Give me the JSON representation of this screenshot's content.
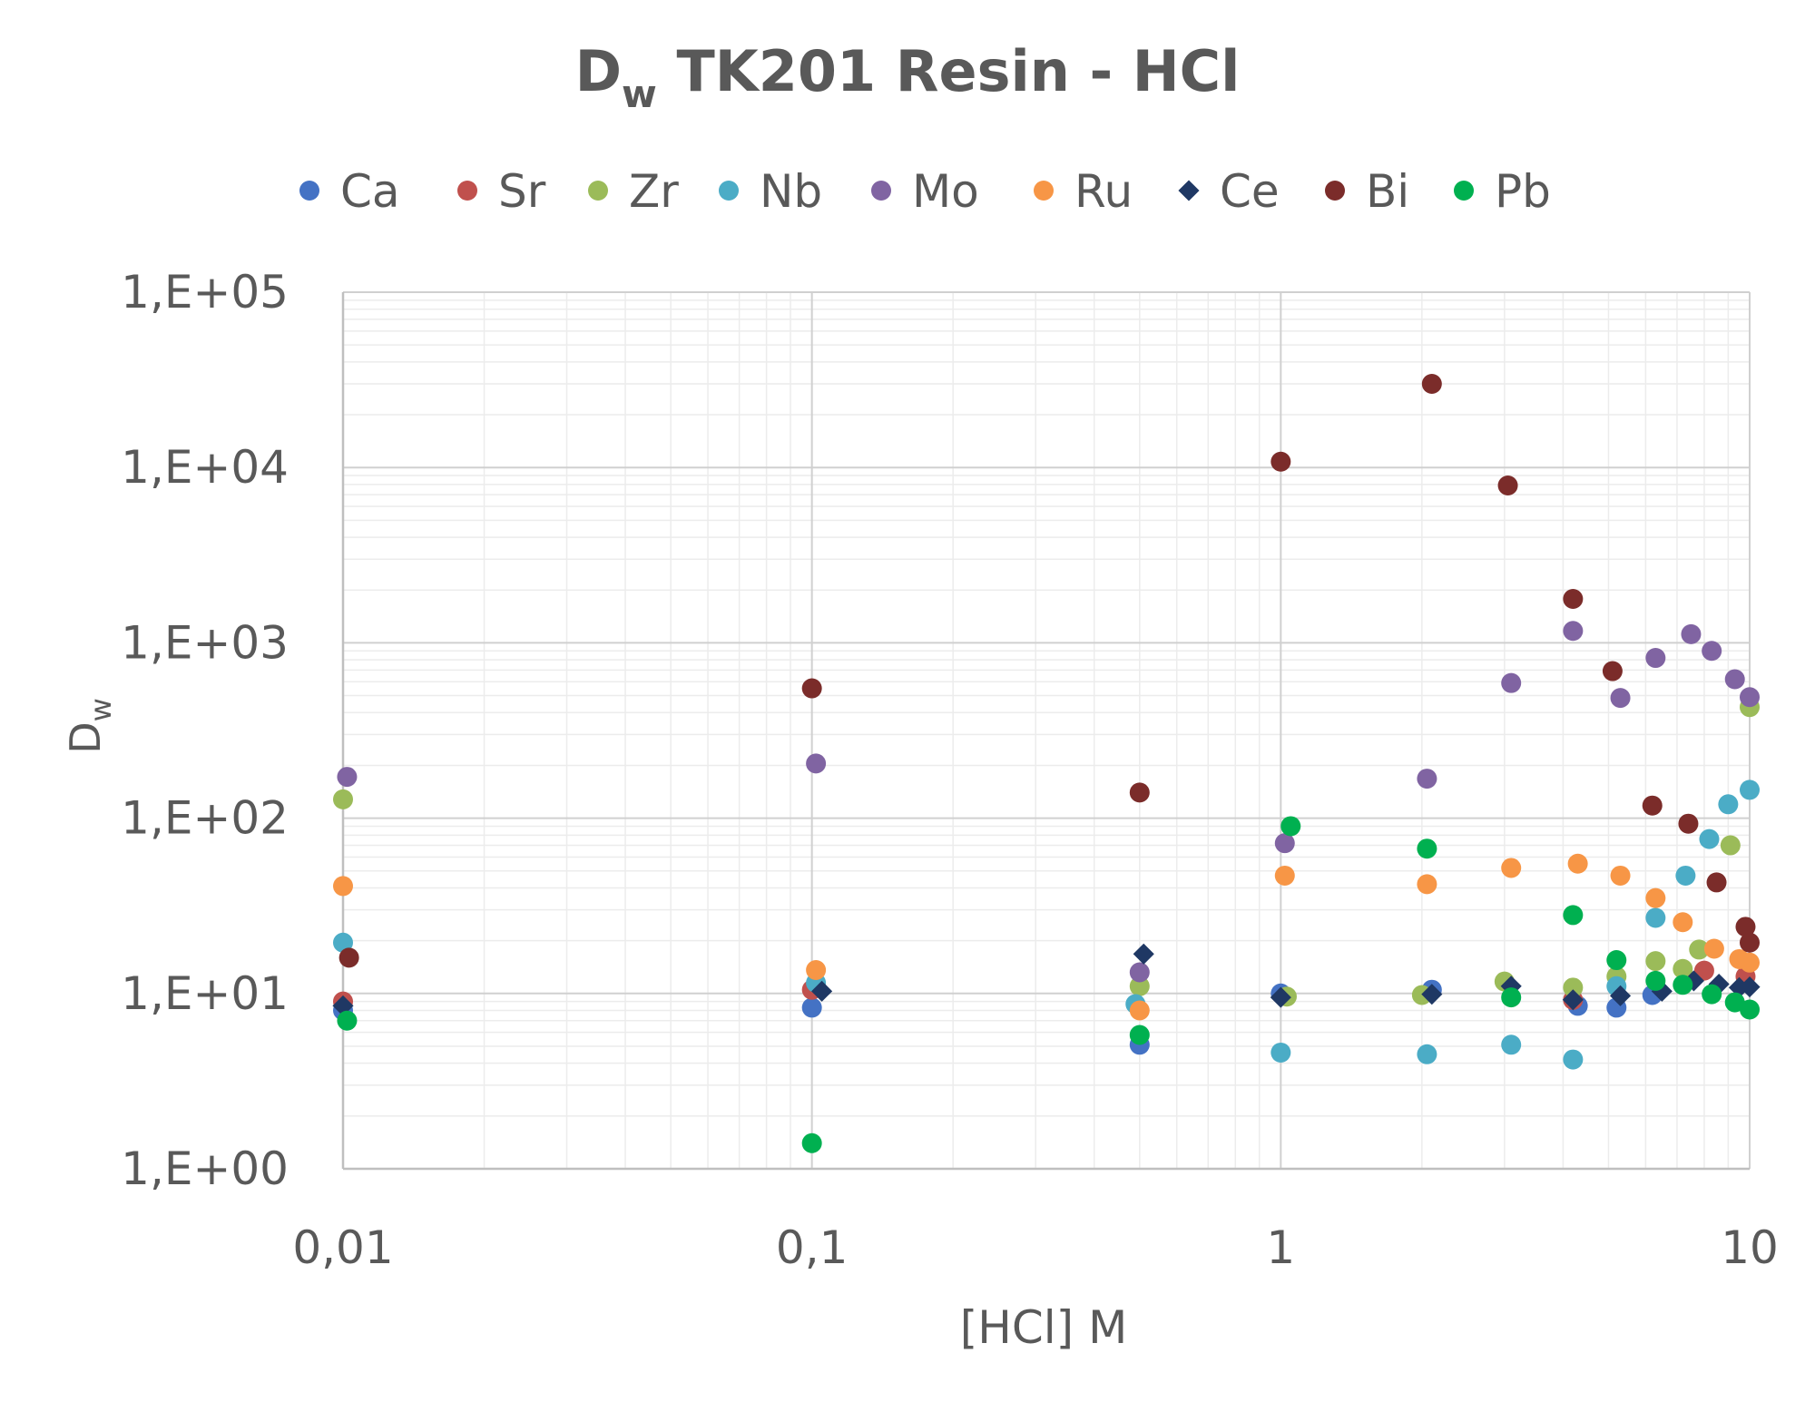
{
  "chart_data": {
    "type": "scatter",
    "title": "D",
    "title_subscript": "w",
    "title_rest": " TK201 Resin - HCl",
    "xlabel": "[HCl] M",
    "ylabel": "D",
    "ylabel_subscript": "w",
    "x_scale": "log",
    "y_scale": "log",
    "xlim": [
      0.01,
      10
    ],
    "ylim": [
      1,
      100000
    ],
    "x_ticks": [
      0.01,
      0.1,
      1,
      10
    ],
    "x_tick_labels": [
      "0,01",
      "0,1",
      "1",
      "10"
    ],
    "y_ticks": [
      1,
      10,
      100,
      1000,
      10000,
      100000
    ],
    "y_tick_labels": [
      "1,E+00",
      "1,E+01",
      "1,E+02",
      "1,E+03",
      "1,E+04",
      "1,E+05"
    ],
    "grid": true,
    "legend_position": "top",
    "series": [
      {
        "name": "Ca",
        "color": "#4472C4",
        "marker": "circle",
        "points": [
          [
            0.01,
            8.0
          ],
          [
            0.1,
            8.3
          ],
          [
            0.5,
            5.1
          ],
          [
            1.0,
            10.0
          ],
          [
            2.1,
            10.5
          ],
          [
            4.3,
            8.5
          ],
          [
            5.2,
            8.3
          ],
          [
            6.2,
            9.8
          ]
        ]
      },
      {
        "name": "Sr",
        "color": "#C0504D",
        "marker": "circle",
        "points": [
          [
            0.01,
            9.0
          ],
          [
            0.1,
            10.5
          ],
          [
            4.2,
            9.2
          ],
          [
            8.0,
            13.5
          ],
          [
            9.8,
            12.5
          ]
        ]
      },
      {
        "name": "Zr",
        "color": "#9BBB59",
        "marker": "circle",
        "points": [
          [
            0.01,
            128
          ],
          [
            0.5,
            11.0
          ],
          [
            1.03,
            9.6
          ],
          [
            2.0,
            9.8
          ],
          [
            3.0,
            11.7
          ],
          [
            4.2,
            10.8
          ],
          [
            5.2,
            12.5
          ],
          [
            6.3,
            15.3
          ],
          [
            7.2,
            13.8
          ],
          [
            7.8,
            17.8
          ],
          [
            9.1,
            70
          ],
          [
            10.0,
            430
          ]
        ]
      },
      {
        "name": "Nb",
        "color": "#4BACC6",
        "marker": "circle",
        "points": [
          [
            0.01,
            19.5
          ],
          [
            0.102,
            11.5
          ],
          [
            0.49,
            8.7
          ],
          [
            1.0,
            4.6
          ],
          [
            2.05,
            4.5
          ],
          [
            3.1,
            5.1
          ],
          [
            4.2,
            4.2
          ],
          [
            5.2,
            11.0
          ],
          [
            6.3,
            27.0
          ],
          [
            7.3,
            47.0
          ],
          [
            8.2,
            76.0
          ],
          [
            9.0,
            120
          ],
          [
            10.0,
            145
          ]
        ]
      },
      {
        "name": "Mo",
        "color": "#8064A2",
        "marker": "circle",
        "points": [
          [
            0.0102,
            172
          ],
          [
            0.102,
            205
          ],
          [
            0.5,
            13.2
          ],
          [
            1.02,
            72
          ],
          [
            2.05,
            168
          ],
          [
            3.1,
            590
          ],
          [
            4.2,
            1170
          ],
          [
            5.3,
            485
          ],
          [
            6.3,
            820
          ],
          [
            7.5,
            1120
          ],
          [
            8.3,
            900
          ],
          [
            9.3,
            620
          ],
          [
            10.0,
            490
          ]
        ]
      },
      {
        "name": "Ru",
        "color": "#F79646",
        "marker": "circle",
        "points": [
          [
            0.01,
            41
          ],
          [
            0.102,
            13.6
          ],
          [
            0.5,
            8.0
          ],
          [
            1.02,
            47
          ],
          [
            2.05,
            42
          ],
          [
            3.1,
            52
          ],
          [
            4.3,
            55
          ],
          [
            5.3,
            47
          ],
          [
            6.3,
            35
          ],
          [
            7.2,
            25.5
          ],
          [
            8.4,
            18.0
          ],
          [
            9.5,
            15.7
          ],
          [
            10.0,
            15.0
          ]
        ]
      },
      {
        "name": "Ce",
        "color": "#1F3864",
        "marker": "diamond",
        "points": [
          [
            0.01,
            8.5
          ],
          [
            0.105,
            10.3
          ],
          [
            0.51,
            16.8
          ],
          [
            1.0,
            9.5
          ],
          [
            2.1,
            9.9
          ],
          [
            3.1,
            11.0
          ],
          [
            4.2,
            9.2
          ],
          [
            5.3,
            9.7
          ],
          [
            6.5,
            10.3
          ],
          [
            7.6,
            11.8
          ],
          [
            8.6,
            11.3
          ],
          [
            9.5,
            10.8
          ],
          [
            10.0,
            10.9
          ]
        ]
      },
      {
        "name": "Bi",
        "color": "#7B2C2A",
        "marker": "circle",
        "points": [
          [
            0.0103,
            16.0
          ],
          [
            0.1,
            550
          ],
          [
            0.5,
            140
          ],
          [
            1.0,
            10800
          ],
          [
            2.1,
            30000
          ],
          [
            3.05,
            7900
          ],
          [
            4.2,
            1780
          ],
          [
            5.1,
            690
          ],
          [
            6.2,
            118
          ],
          [
            7.4,
            93
          ],
          [
            8.5,
            43
          ],
          [
            9.8,
            24
          ],
          [
            10.0,
            19.5
          ]
        ]
      },
      {
        "name": "Pb",
        "color": "#00B050",
        "marker": "circle",
        "points": [
          [
            0.0102,
            7.0
          ],
          [
            0.1,
            1.4
          ],
          [
            0.5,
            5.8
          ],
          [
            1.05,
            90
          ],
          [
            2.05,
            67
          ],
          [
            3.1,
            9.5
          ],
          [
            4.2,
            28
          ],
          [
            5.2,
            15.5
          ],
          [
            6.3,
            11.8
          ],
          [
            7.2,
            11.2
          ],
          [
            8.3,
            9.9
          ],
          [
            9.3,
            8.9
          ],
          [
            10.0,
            8.1
          ]
        ]
      }
    ]
  }
}
